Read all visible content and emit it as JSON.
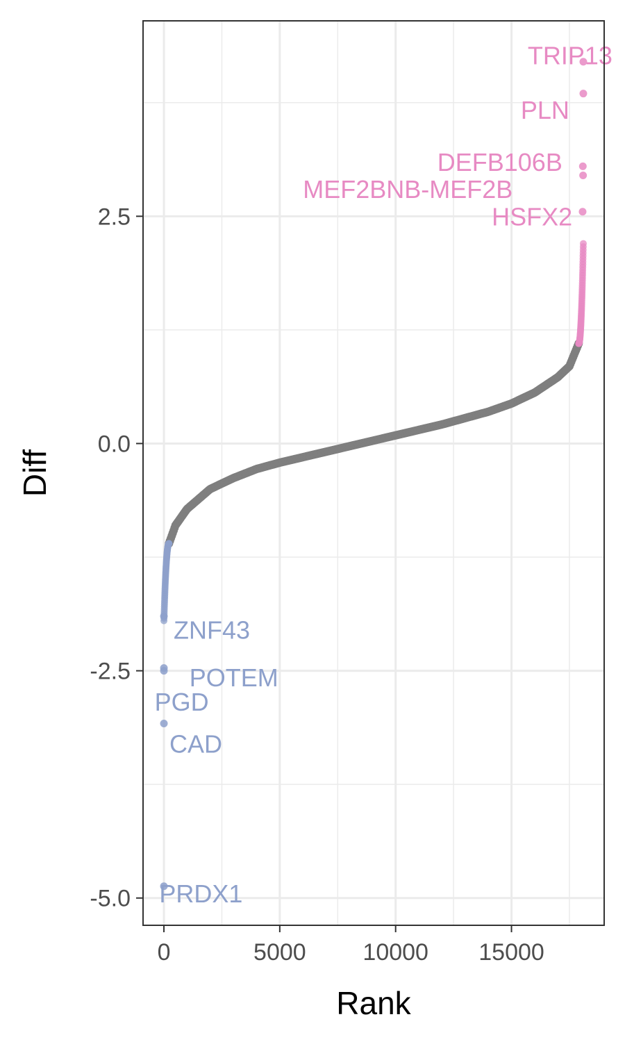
{
  "chart_data": {
    "type": "scatter",
    "title": "",
    "xlabel": "Rank",
    "ylabel": "Diff",
    "xlim": [
      -900,
      19000
    ],
    "ylim": [
      -5.3,
      4.65
    ],
    "x_ticks": [
      0,
      5000,
      10000,
      15000
    ],
    "x_tick_labels": [
      "0",
      "5000",
      "10000",
      "15000"
    ],
    "y_ticks": [
      -5.0,
      -2.5,
      0.0,
      2.5
    ],
    "y_tick_labels": [
      "-5.0",
      "-2.5",
      "0.0",
      "2.5"
    ],
    "x_minor_ticks": [
      2500,
      7500,
      12500,
      17500
    ],
    "y_minor_ticks": [
      -3.75,
      -1.25,
      1.25,
      3.75
    ],
    "grid": true,
    "legend": "none",
    "n_points": 18100,
    "colors": {
      "neutral": "#7f7f7f",
      "down": "#8da0cb",
      "up": "#e78ac3",
      "grid": "#ebebeb",
      "panel_border": "#333333"
    },
    "series": [
      {
        "category": "down",
        "color": "#8da0cb",
        "rank_range": [
          1,
          220
        ],
        "diff_range": [
          -4.87,
          -1.1
        ]
      },
      {
        "category": "neutral",
        "color": "#7f7f7f",
        "rank_range": [
          220,
          17900
        ],
        "curve": [
          [
            220,
            -1.1
          ],
          [
            500,
            -0.9
          ],
          [
            1000,
            -0.72
          ],
          [
            2000,
            -0.5
          ],
          [
            3000,
            -0.38
          ],
          [
            4000,
            -0.28
          ],
          [
            5000,
            -0.21
          ],
          [
            6000,
            -0.15
          ],
          [
            7000,
            -0.09
          ],
          [
            8000,
            -0.03
          ],
          [
            9000,
            0.03
          ],
          [
            10000,
            0.09
          ],
          [
            11000,
            0.15
          ],
          [
            12000,
            0.21
          ],
          [
            13000,
            0.28
          ],
          [
            14000,
            0.35
          ],
          [
            15000,
            0.44
          ],
          [
            16000,
            0.56
          ],
          [
            17000,
            0.73
          ],
          [
            17500,
            0.85
          ],
          [
            17900,
            1.1
          ]
        ]
      },
      {
        "category": "up",
        "color": "#e78ac3",
        "rank_range": [
          17900,
          18100
        ],
        "diff_range": [
          1.1,
          4.2
        ]
      }
    ],
    "highlighted": [
      {
        "label": "TRIP13",
        "x": 18100,
        "y": 4.2,
        "label_x": 15700,
        "label_y": 4.27,
        "category": "up"
      },
      {
        "label": "PLN",
        "x": 18100,
        "y": 3.85,
        "label_x": 15400,
        "label_y": 3.67,
        "category": "up"
      },
      {
        "label": "DEFB106B",
        "x": 18080,
        "y": 3.05,
        "label_x": 11800,
        "label_y": 3.1,
        "category": "up"
      },
      {
        "label": "MEF2BNB-MEF2B",
        "x": 18090,
        "y": 2.95,
        "label_x": 6000,
        "label_y": 2.8,
        "category": "up"
      },
      {
        "label": "HSFX2",
        "x": 18070,
        "y": 2.55,
        "label_x": 14150,
        "label_y": 2.5,
        "category": "up"
      },
      {
        "label": "ZNF43",
        "x": 0,
        "y": -1.9,
        "label_x": 420,
        "label_y": -2.05,
        "category": "down"
      },
      {
        "label": "POTEM",
        "x": 0,
        "y": -2.47,
        "label_x": 1100,
        "label_y": -2.57,
        "category": "down"
      },
      {
        "label": "PGD",
        "x": 0,
        "y": -2.5,
        "label_x": -400,
        "label_y": -2.84,
        "category": "down"
      },
      {
        "label": "CAD",
        "x": 0,
        "y": -3.08,
        "label_x": 240,
        "label_y": -3.3,
        "category": "down"
      },
      {
        "label": "PRDX1",
        "x": 0,
        "y": -4.87,
        "label_x": -200,
        "label_y": -4.95,
        "category": "down"
      }
    ]
  }
}
